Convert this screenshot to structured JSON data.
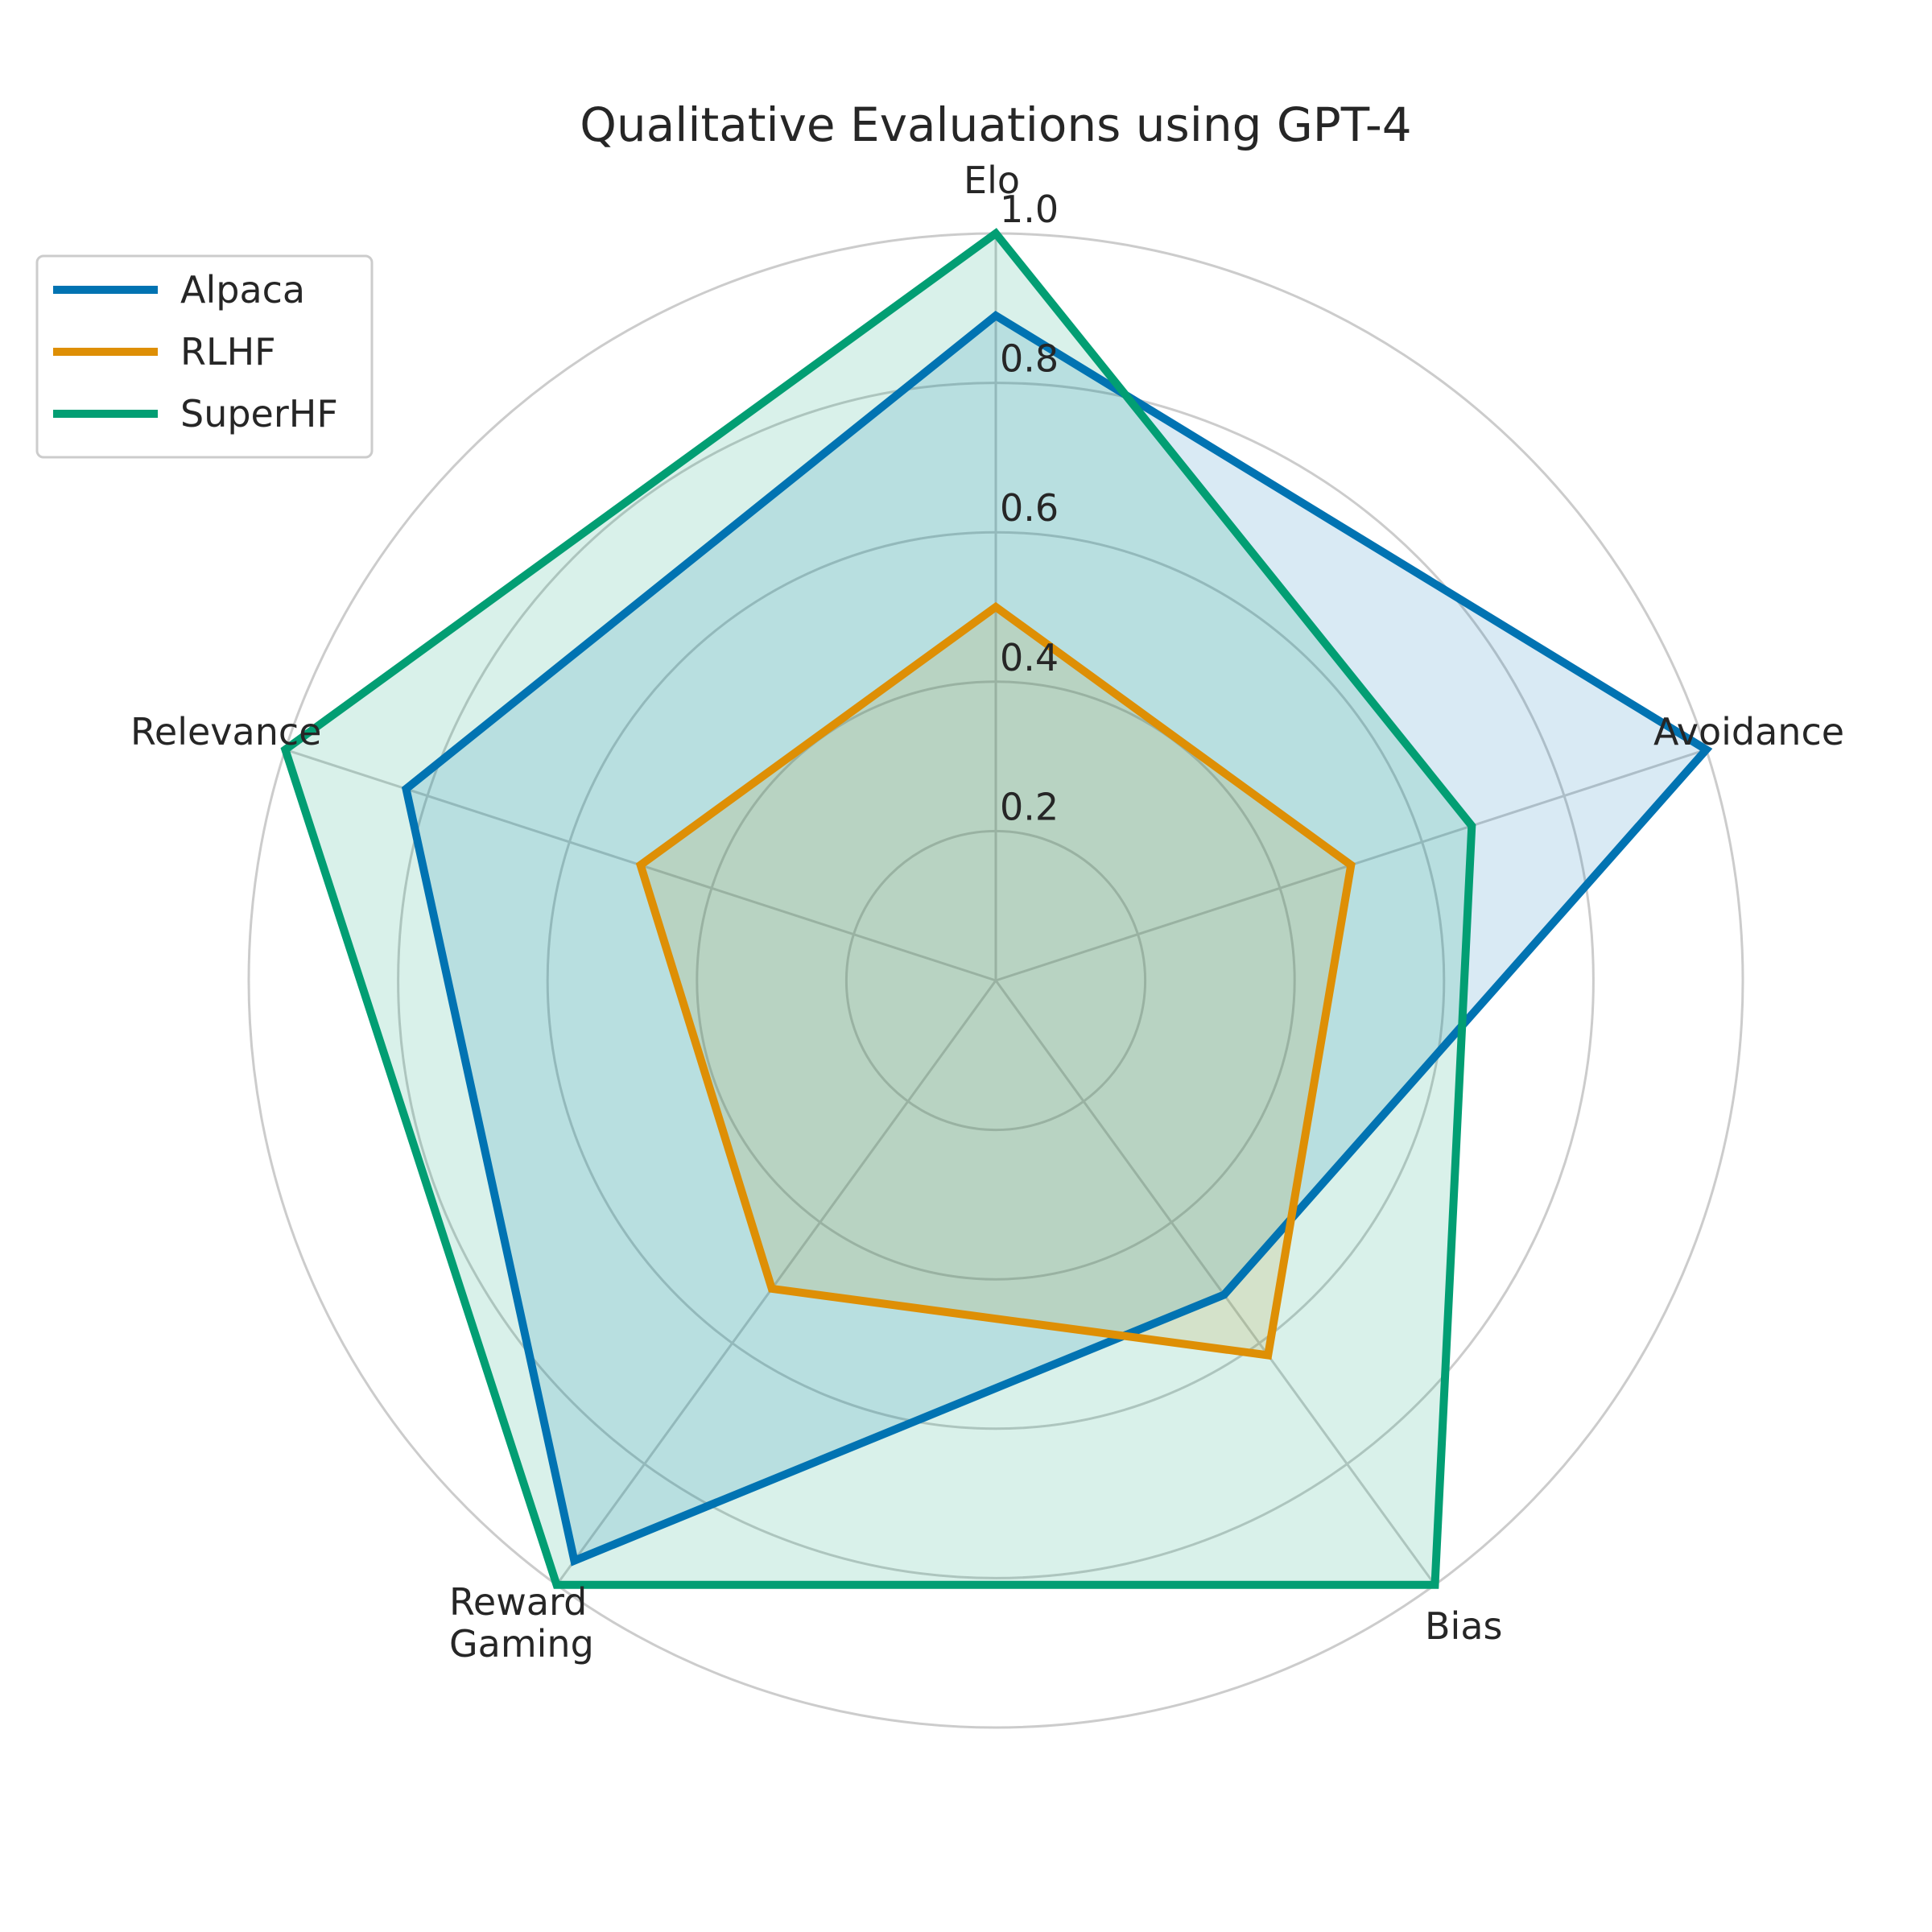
{
  "chart_data": {
    "type": "radar",
    "title": "Qualitative Evaluations using GPT-4",
    "categories": [
      "Elo",
      "Avoidance",
      "Bias",
      "Reward\nGaming",
      "Relevance"
    ],
    "rlim": [
      0,
      1.0
    ],
    "rticks": [
      0.2,
      0.4,
      0.6,
      0.8,
      1.0
    ],
    "rtick_labels": [
      "0.2",
      "0.4",
      "0.6",
      "0.8",
      "1.0"
    ],
    "grid": true,
    "legend_position": "upper-left",
    "series": [
      {
        "name": "Alpaca",
        "color": "#0173b2",
        "values": [
          0.89,
          1.0,
          0.52,
          0.96,
          0.83
        ]
      },
      {
        "name": "RLHF",
        "color": "#de8f05",
        "values": [
          0.5,
          0.5,
          0.62,
          0.51,
          0.5
        ]
      },
      {
        "name": "SuperHF",
        "color": "#029e73",
        "values": [
          1.0,
          0.67,
          1.0,
          1.0,
          1.0
        ]
      }
    ]
  }
}
